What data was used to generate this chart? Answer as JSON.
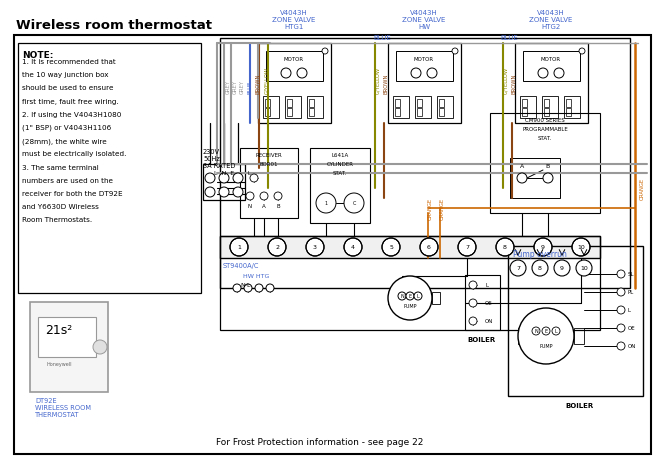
{
  "title": "Wireless room thermostat",
  "title_color": "#000000",
  "bg_color": "#ffffff",
  "note_title": "NOTE:",
  "note_lines": [
    "1. It is recommended that",
    "the 10 way junction box",
    "should be used to ensure",
    "first time, fault free wiring.",
    "2. If using the V4043H1080",
    "(1\" BSP) or V4043H1106",
    "(28mm), the white wire",
    "must be electrically isolated.",
    "3. The same terminal",
    "numbers are used on the",
    "receiver for both the DT92E",
    "and Y6630D Wireless",
    "Room Thermostats."
  ],
  "bottom_text": "For Frost Protection information - see page 22",
  "zv_labels": [
    "V4043H\nZONE VALVE\nHTG1",
    "V4043H\nZONE VALVE\nHW",
    "V4043H\nZONE VALVE\nHTG2"
  ],
  "wire_color_grey": "#999999",
  "wire_color_blue": "#4466cc",
  "wire_color_brown": "#8B4513",
  "wire_color_gyellow": "#888800",
  "wire_color_orange": "#cc6600",
  "label_color": "#4466cc",
  "dt92e_label": "DT92E\nWIRELESS ROOM\nTHERMOSTAT",
  "st9400_label": "ST9400A/C",
  "hwhtg_label": "HW HTG",
  "pump_overrun_label": "Pump overrun",
  "boiler_label": "BOILER",
  "frost_text": "For Frost Protection information - see page 22"
}
